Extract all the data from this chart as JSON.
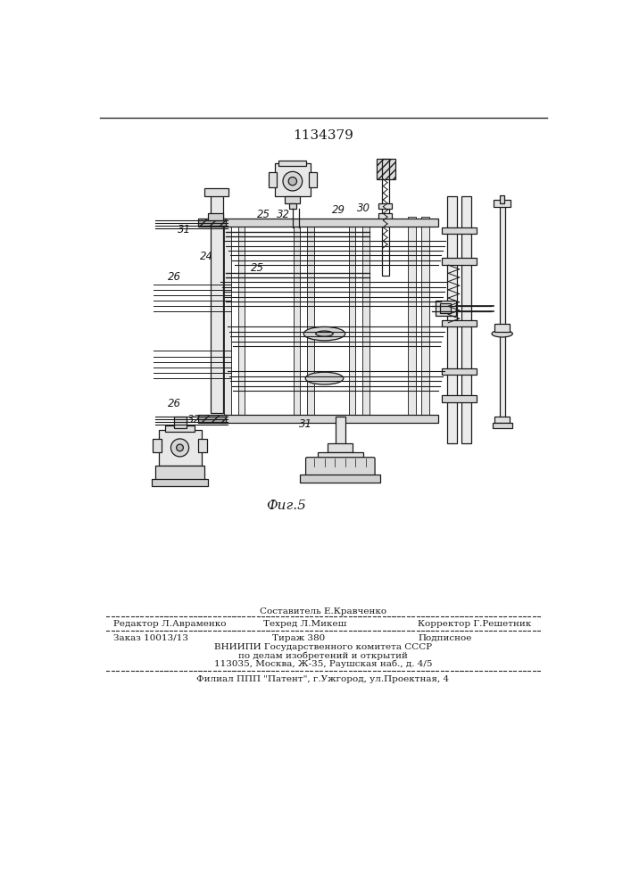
{
  "patent_number": "1134379",
  "fig_label": "Фиг.5",
  "page_color": "#ffffff",
  "footer_line1_center_top": "Составитель Е.Кравченко",
  "footer_line1_left": "Редактор Л.Авраменко",
  "footer_line1_center": "Техред Л.Микеш",
  "footer_line1_right": "Корректор Г.Решетник",
  "footer_line2_left": "Заказ 10013/13",
  "footer_line2_center": "Тираж 380",
  "footer_line2_right": "Подписное",
  "footer_line3": "ВНИИПИ Государственного комитета СССР",
  "footer_line4": "по делам изобретений и открытий",
  "footer_line5": "113035, Москва, Ж-35, Раушская наб., д. 4/5",
  "footer_bottom": "Филиал ППП \"Патент\", г.Ужгород, ул.Проектная, 4",
  "text_color": "#1a1a1a",
  "line_color": "#2a2a2a"
}
